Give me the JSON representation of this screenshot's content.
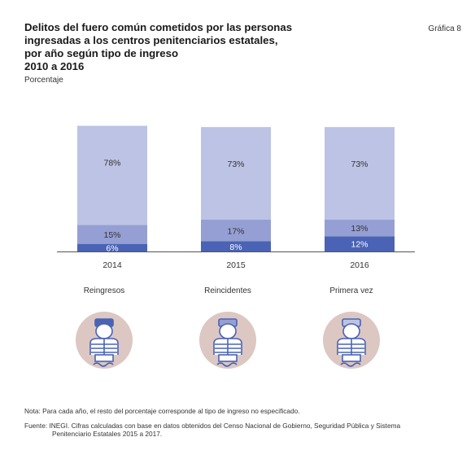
{
  "header": {
    "title_lines": [
      "Delitos del fuero común cometidos por las personas",
      "ingresadas a los centros penitenciarios estatales,",
      "por año según tipo de ingreso",
      "2010 a 2016"
    ],
    "unit": "Porcentaje",
    "figure_label": "Gráfica 8"
  },
  "chart_data": {
    "type": "bar",
    "stacked": true,
    "categories": [
      "2014",
      "2015",
      "2016"
    ],
    "series": [
      {
        "values": [
          6,
          8,
          12
        ],
        "labels": [
          "6%",
          "8%",
          "12%"
        ],
        "color": "#4a63b5"
      },
      {
        "values": [
          15,
          17,
          13
        ],
        "labels": [
          "15%",
          "17%",
          "13%"
        ],
        "color": "#959fd3"
      },
      {
        "values": [
          78,
          73,
          73
        ],
        "labels": [
          "78%",
          "73%",
          "73%"
        ],
        "color": "#bcc3e4"
      }
    ],
    "ylim": [
      0,
      100
    ],
    "grid": false,
    "legend_labels": [
      "Reingresos",
      "Reincidentes",
      "Primera vez"
    ]
  },
  "icon_color_bg": "#dcc7c2",
  "icon_color_figure": "#4a63b5",
  "notes": {
    "nota": "Nota: Para cada año, el resto del porcentaje corresponde al tipo de ingreso no especificado.",
    "fuente_line1": "Fuente: INEGI. Cifras calculadas con base en datos obtenidos del Censo Nacional de Gobierno, Seguridad Pública y Sistema",
    "fuente_line2": "Penitenciario Estatales 2015 a 2017."
  }
}
